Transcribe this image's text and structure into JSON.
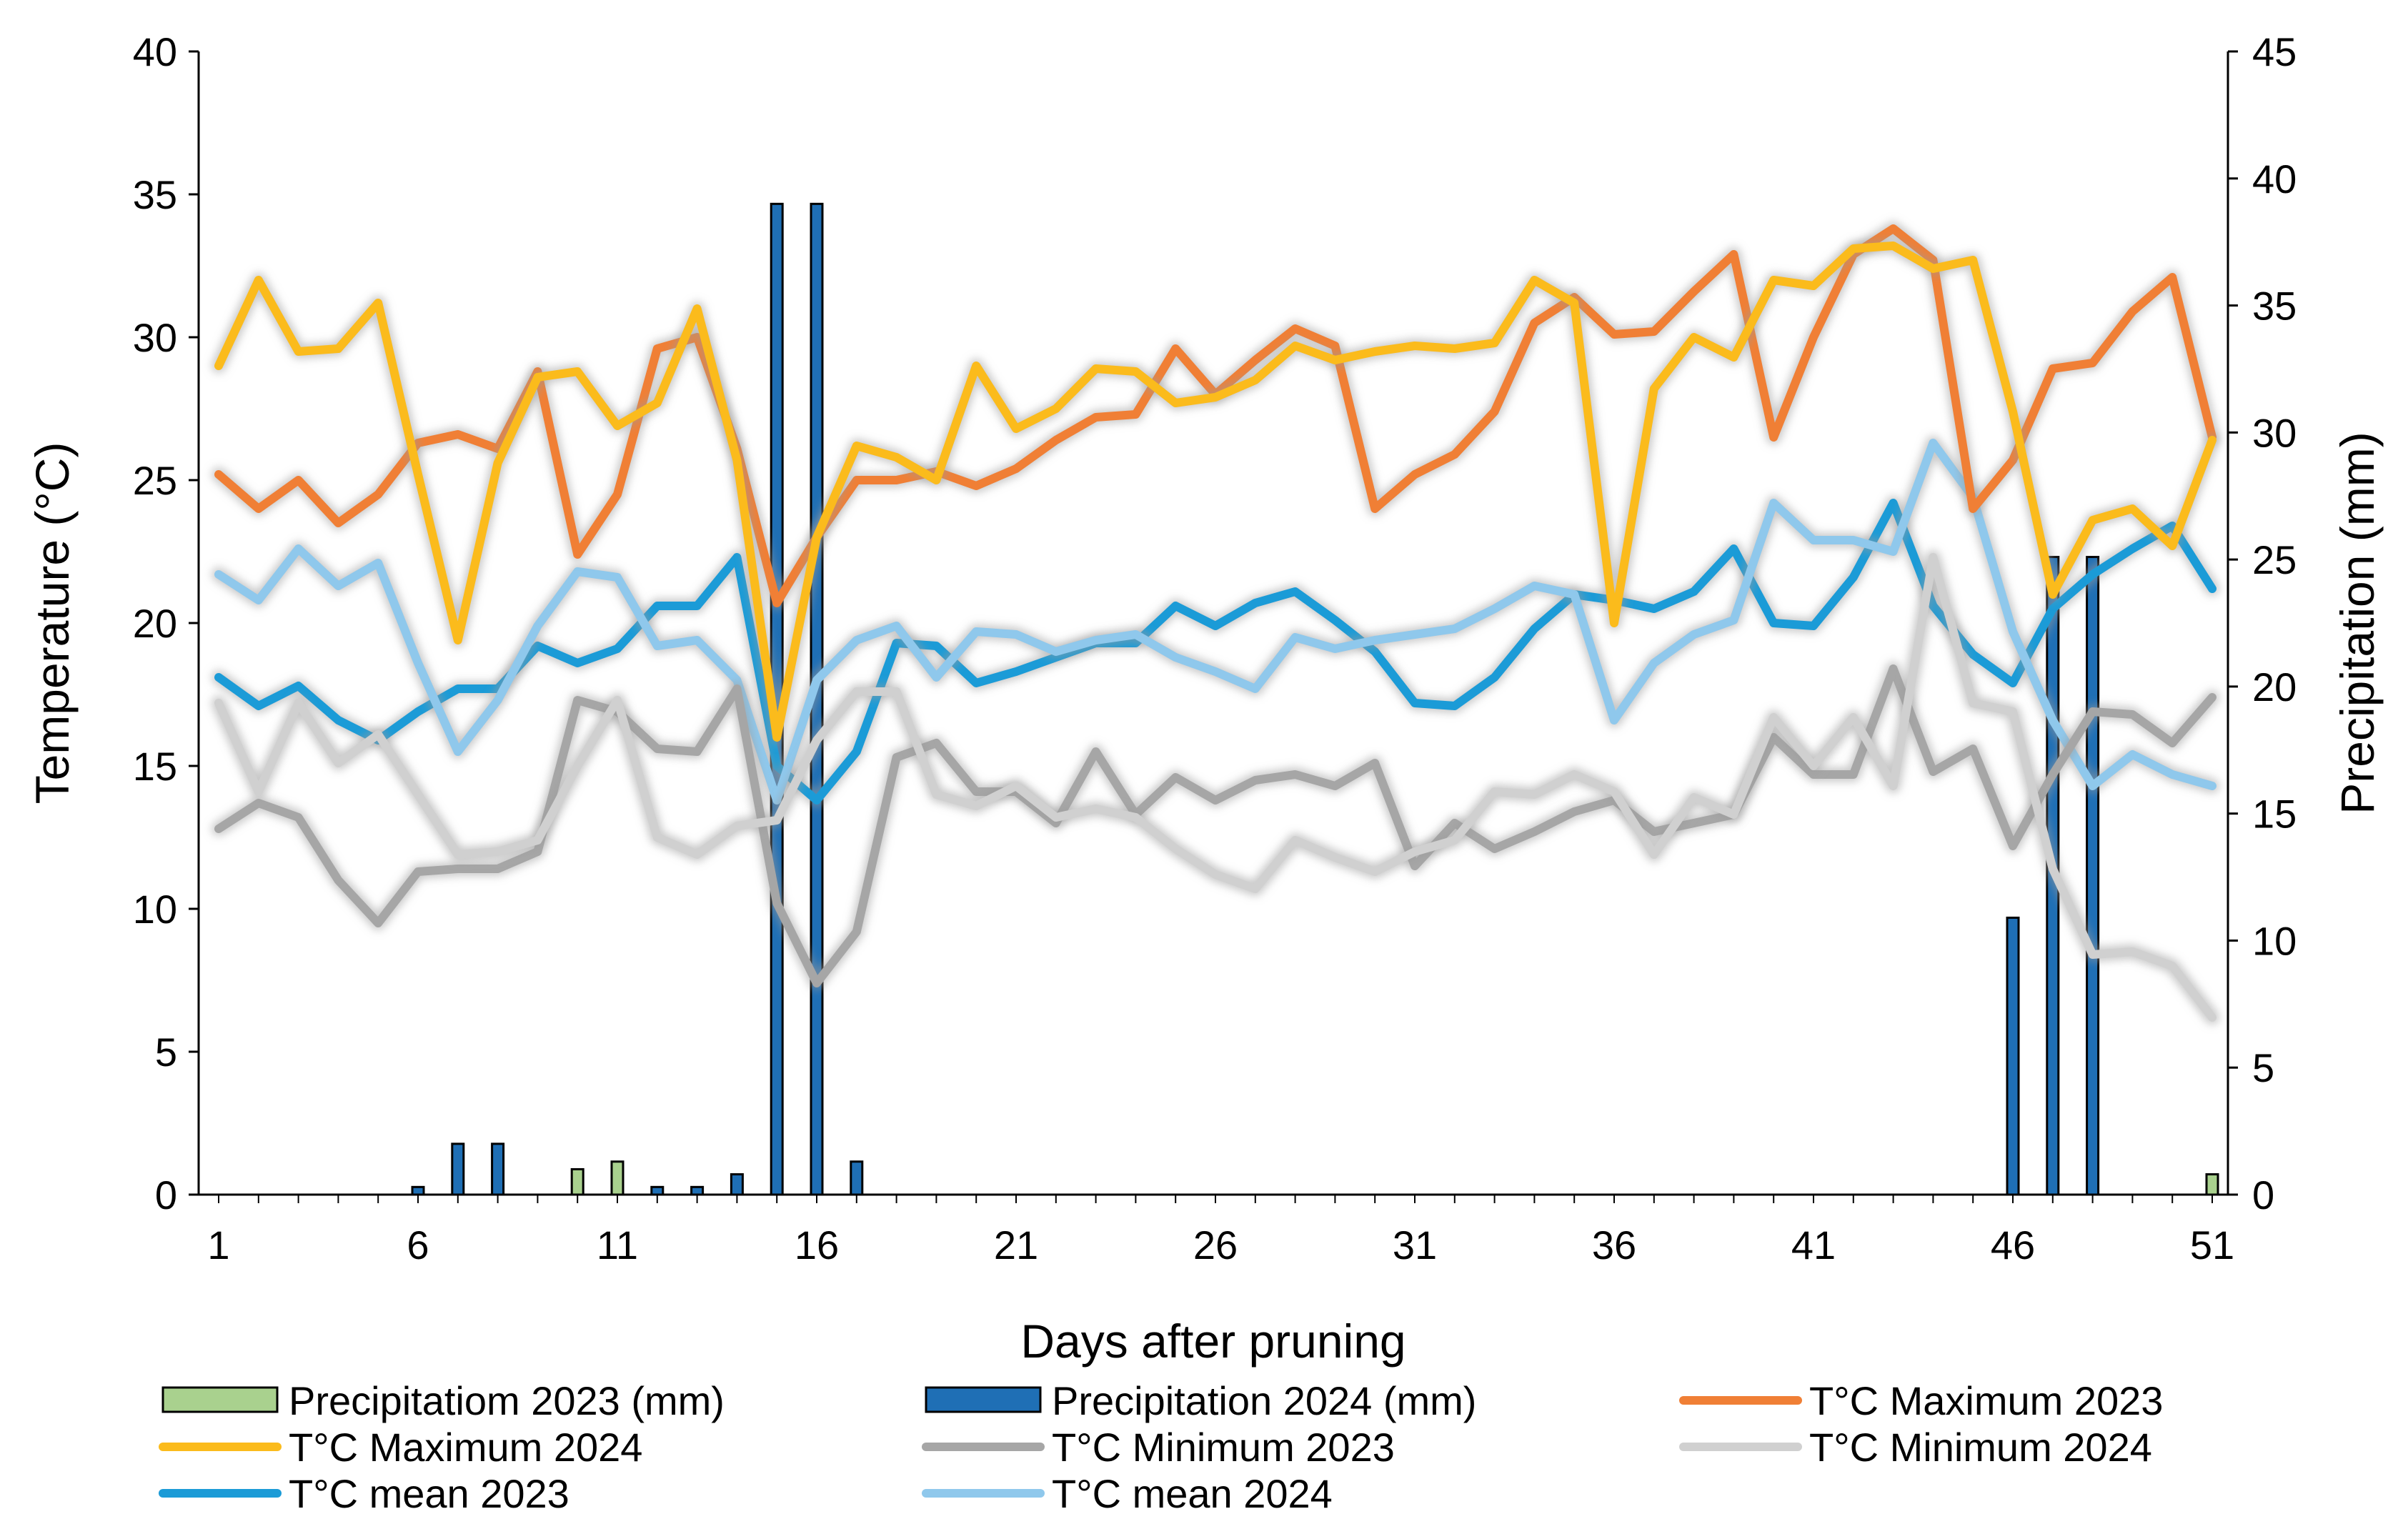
{
  "chart_data": {
    "type": "bar+line",
    "title": "",
    "xlabel": "Days after pruning",
    "ylabel_left": "Temperature (°C)",
    "ylabel_right": "Precipitation (mm)",
    "x": [
      1,
      2,
      3,
      4,
      5,
      6,
      7,
      8,
      9,
      10,
      11,
      12,
      13,
      14,
      15,
      16,
      17,
      18,
      19,
      20,
      21,
      22,
      23,
      24,
      25,
      26,
      27,
      28,
      29,
      30,
      31,
      32,
      33,
      34,
      35,
      36,
      37,
      38,
      39,
      40,
      41,
      42,
      43,
      44,
      45,
      46,
      47,
      48,
      49,
      50,
      51
    ],
    "x_ticks": [
      1,
      6,
      11,
      16,
      21,
      26,
      31,
      36,
      41,
      46,
      51
    ],
    "y_left": {
      "min": 0,
      "max": 40,
      "ticks": [
        0,
        5,
        10,
        15,
        20,
        25,
        30,
        35,
        40
      ]
    },
    "y_right": {
      "min": 0,
      "max": 45,
      "ticks": [
        0,
        5,
        10,
        15,
        20,
        25,
        30,
        35,
        40,
        45
      ]
    },
    "bar_series": [
      {
        "name": "Precipitatiom 2023 (mm)",
        "color": "#a9d18e",
        "axis": "right",
        "values": [
          0,
          0,
          0,
          0,
          0,
          0,
          0,
          0,
          0,
          1.0,
          1.3,
          0,
          0,
          0,
          0,
          0,
          0,
          0,
          0,
          0,
          0,
          0,
          0,
          0,
          0,
          0,
          0,
          0,
          0,
          0,
          0,
          0,
          0,
          0,
          0,
          0,
          0,
          0,
          0,
          0,
          0,
          0,
          0,
          0,
          0,
          0,
          0,
          0,
          0,
          0,
          0.8
        ]
      },
      {
        "name": "Precipitation 2024 (mm)",
        "color": "#1f6fb5",
        "axis": "right",
        "values": [
          0,
          0,
          0,
          0,
          0,
          0.3,
          2.0,
          2.0,
          0,
          0,
          0,
          0.3,
          0.3,
          0.8,
          39.0,
          39.0,
          1.3,
          0,
          0,
          0,
          0,
          0,
          0,
          0,
          0,
          0,
          0,
          0,
          0,
          0,
          0,
          0,
          0,
          0,
          0,
          0,
          0,
          0,
          0,
          0,
          0,
          0,
          0,
          0,
          0,
          10.9,
          25.1,
          25.1,
          0,
          0,
          0
        ]
      }
    ],
    "line_series": [
      {
        "name": "T°C Maximum 2023",
        "color": "#f07f35",
        "axis": "left",
        "values": [
          25.2,
          24.0,
          25.0,
          23.5,
          24.5,
          26.3,
          26.6,
          26.1,
          28.8,
          22.4,
          24.5,
          29.6,
          30.0,
          26.1,
          20.7,
          23.0,
          25.0,
          25.0,
          25.3,
          24.8,
          25.4,
          26.4,
          27.2,
          27.3,
          29.6,
          28.0,
          29.2,
          30.3,
          29.7,
          24.0,
          25.2,
          25.9,
          27.4,
          30.5,
          31.4,
          30.1,
          30.2,
          31.6,
          32.9,
          26.5,
          30.0,
          32.9,
          33.8,
          32.7,
          24.0,
          25.7,
          28.9,
          29.1,
          30.9,
          32.1,
          26.5
        ]
      },
      {
        "name": "T°C Maximum 2024",
        "color": "#fbbb1c",
        "axis": "left",
        "values": [
          29.0,
          32.0,
          29.5,
          29.6,
          31.2,
          25.2,
          19.4,
          25.6,
          28.6,
          28.8,
          26.9,
          27.7,
          31.0,
          25.7,
          16.0,
          23.0,
          26.2,
          25.8,
          25.0,
          29.0,
          26.8,
          27.5,
          28.9,
          28.8,
          27.7,
          27.9,
          28.5,
          29.7,
          29.2,
          29.5,
          29.7,
          29.6,
          29.8,
          32.0,
          31.2,
          20.0,
          28.2,
          30.0,
          29.3,
          32.0,
          31.8,
          33.1,
          33.2,
          32.4,
          32.7,
          27.4,
          21.0,
          23.6,
          24.0,
          22.7,
          26.4
        ]
      },
      {
        "name": "T°C Minimum 2023",
        "color": "#a6a6a6",
        "axis": "left",
        "values": [
          12.8,
          13.7,
          13.2,
          11.0,
          9.5,
          11.3,
          11.4,
          11.4,
          12.0,
          17.3,
          16.9,
          15.6,
          15.5,
          17.7,
          10.2,
          7.4,
          9.2,
          15.3,
          15.8,
          14.1,
          14.1,
          13.0,
          15.5,
          13.3,
          14.6,
          13.8,
          14.5,
          14.7,
          14.3,
          15.1,
          11.5,
          13.0,
          12.1,
          12.7,
          13.4,
          13.8,
          12.7,
          13.0,
          13.3,
          16.0,
          14.7,
          14.7,
          18.4,
          14.8,
          15.6,
          12.2,
          14.7,
          16.9,
          16.8,
          15.8,
          17.4
        ]
      },
      {
        "name": "T°C Minimum 2024",
        "color": "#d0d0d0",
        "axis": "left",
        "values": [
          17.2,
          14.1,
          17.2,
          15.1,
          16.1,
          14.0,
          11.9,
          12.0,
          12.4,
          15.0,
          17.3,
          12.5,
          11.9,
          12.9,
          13.1,
          15.9,
          17.6,
          17.6,
          14.0,
          13.6,
          14.3,
          13.2,
          13.5,
          13.2,
          12.1,
          11.2,
          10.7,
          12.4,
          11.8,
          11.3,
          12.0,
          12.4,
          14.1,
          14.0,
          14.7,
          14.1,
          11.9,
          13.9,
          13.3,
          16.7,
          15.0,
          16.7,
          14.3,
          22.3,
          17.2,
          16.9,
          11.4,
          8.4,
          8.5,
          8.0,
          6.2
        ]
      },
      {
        "name": "T°C mean 2023",
        "color": "#1b9bd7",
        "axis": "left",
        "values": [
          18.1,
          17.1,
          17.8,
          16.6,
          15.9,
          16.9,
          17.7,
          17.7,
          19.2,
          18.6,
          19.1,
          20.6,
          20.6,
          22.3,
          15.0,
          13.8,
          15.5,
          19.3,
          19.2,
          17.9,
          18.3,
          18.8,
          19.3,
          19.3,
          20.6,
          19.9,
          20.7,
          21.1,
          20.1,
          19.0,
          17.2,
          17.1,
          18.1,
          19.8,
          21.0,
          20.8,
          20.5,
          21.1,
          22.6,
          20.0,
          19.9,
          21.6,
          24.2,
          20.6,
          18.9,
          17.9,
          20.5,
          21.7,
          22.6,
          23.4,
          21.2
        ]
      },
      {
        "name": "T°C mean 2024",
        "color": "#8fc8ec",
        "axis": "left",
        "values": [
          21.7,
          20.8,
          22.6,
          21.3,
          22.1,
          18.6,
          15.5,
          17.3,
          19.9,
          21.8,
          21.6,
          19.2,
          19.4,
          18.0,
          13.8,
          18.0,
          19.4,
          19.9,
          18.1,
          19.7,
          19.6,
          19.0,
          19.4,
          19.6,
          18.8,
          18.3,
          17.7,
          19.5,
          19.1,
          19.4,
          19.6,
          19.8,
          20.5,
          21.3,
          21.0,
          16.6,
          18.6,
          19.6,
          20.1,
          24.2,
          22.9,
          22.9,
          22.5,
          26.3,
          24.4,
          19.7,
          16.6,
          14.3,
          15.4,
          14.7,
          14.3
        ]
      }
    ],
    "legend": [
      {
        "label": "Precipitatiom 2023 (mm)",
        "kind": "bar",
        "color": "#a9d18e"
      },
      {
        "label": "Precipitation 2024 (mm)",
        "kind": "bar",
        "color": "#1f6fb5"
      },
      {
        "label": "T°C Maximum 2023",
        "kind": "line",
        "color": "#f07f35"
      },
      {
        "label": "T°C Maximum 2024",
        "kind": "line",
        "color": "#fbbb1c"
      },
      {
        "label": "T°C Minimum 2023",
        "kind": "line",
        "color": "#a6a6a6"
      },
      {
        "label": "T°C Minimum 2024",
        "kind": "line",
        "color": "#d0d0d0"
      },
      {
        "label": "T°C mean 2023",
        "kind": "line",
        "color": "#1b9bd7"
      },
      {
        "label": "T°C mean 2024",
        "kind": "line",
        "color": "#8fc8ec"
      }
    ],
    "legend_position": "bottom"
  }
}
